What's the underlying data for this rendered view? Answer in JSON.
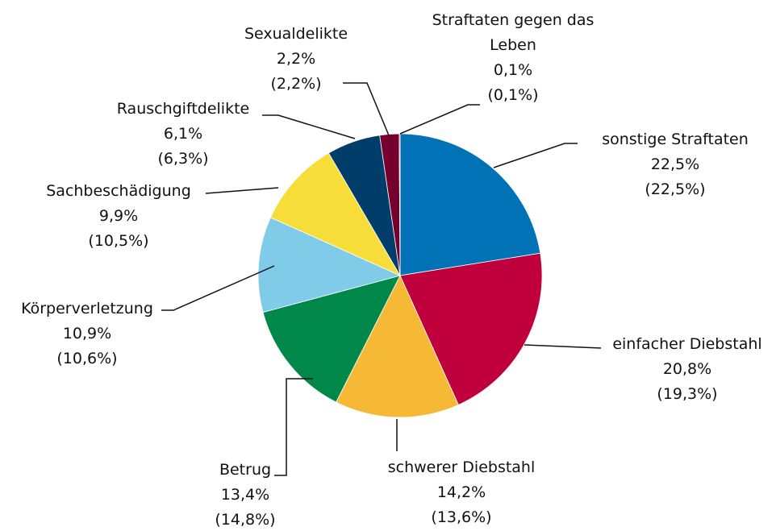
{
  "chart_data": {
    "type": "pie",
    "categories": [
      "sonstige Straftaten",
      "einfacher Diebstahl",
      "schwerer Diebstahl",
      "Betrug",
      "Körperverletzung",
      "Sachbeschädigung",
      "Rauschgiftdelikte",
      "Sexualdelikte",
      "Straftaten gegen das Leben"
    ],
    "values": [
      22.5,
      20.8,
      14.2,
      13.4,
      10.9,
      9.9,
      6.1,
      2.2,
      0.1
    ],
    "value_labels": [
      "22,5%",
      "20,8%",
      "14,2%",
      "13,4%",
      "10,9%",
      "9,9%",
      "6,1%",
      "2,2%",
      "0,1%"
    ],
    "previous_labels": [
      "(22,5%)",
      "(19,3%)",
      "(13,6%)",
      "(14,8%)",
      "(10,6%)",
      "(10,5%)",
      "(6,3%)",
      "(2,2%)",
      "(0,1%)"
    ],
    "colors": [
      "#0072b5",
      "#c0003c",
      "#f5b935",
      "#00874a",
      "#80cbe8",
      "#f7dd3a",
      "#003d6b",
      "#76002d",
      "#c9184a"
    ]
  }
}
